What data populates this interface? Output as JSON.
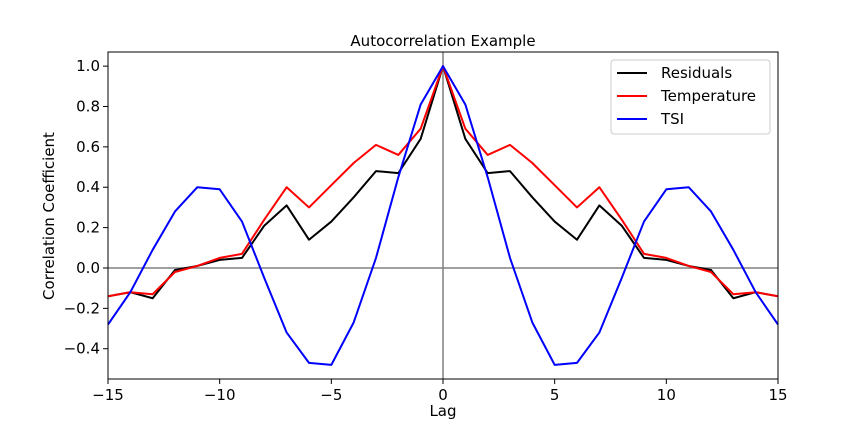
{
  "chart_data": {
    "type": "line",
    "title": "Autocorrelation Example",
    "xlabel": "Lag",
    "ylabel": "Correlation Coefficient",
    "xlim": [
      -15,
      15
    ],
    "ylim": [
      -0.55,
      1.07
    ],
    "xticks": [
      -15,
      -10,
      -5,
      0,
      5,
      10,
      15
    ],
    "xtick_labels": [
      "−15",
      "−10",
      "−5",
      "0",
      "5",
      "10",
      "15"
    ],
    "yticks": [
      -0.4,
      -0.2,
      0.0,
      0.2,
      0.4,
      0.6,
      0.8,
      1.0
    ],
    "ytick_labels": [
      "−0.4",
      "−0.2",
      "0.0",
      "0.2",
      "0.4",
      "0.6",
      "0.8",
      "1.0"
    ],
    "x": [
      -15,
      -14,
      -13,
      -12,
      -11,
      -10,
      -9,
      -8,
      -7,
      -6,
      -5,
      -4,
      -3,
      -2,
      -1,
      0,
      1,
      2,
      3,
      4,
      5,
      6,
      7,
      8,
      9,
      10,
      11,
      12,
      13,
      14,
      15
    ],
    "reference_lines": {
      "x": 0,
      "y": 0,
      "color": "#808080"
    },
    "legend_position": "top-right",
    "grid": false,
    "series": [
      {
        "name": "Residuals",
        "color": "#000000",
        "values": [
          -0.14,
          -0.12,
          -0.15,
          -0.01,
          0.01,
          0.04,
          0.05,
          0.21,
          0.31,
          0.14,
          0.23,
          0.35,
          0.48,
          0.47,
          0.64,
          1.0,
          0.64,
          0.47,
          0.48,
          0.35,
          0.23,
          0.14,
          0.31,
          0.21,
          0.05,
          0.04,
          0.01,
          -0.01,
          -0.15,
          -0.12,
          -0.14
        ]
      },
      {
        "name": "Temperature",
        "color": "#ff0000",
        "values": [
          -0.14,
          -0.12,
          -0.13,
          -0.02,
          0.01,
          0.05,
          0.07,
          0.24,
          0.4,
          0.3,
          0.41,
          0.52,
          0.61,
          0.56,
          0.69,
          1.0,
          0.69,
          0.56,
          0.61,
          0.52,
          0.41,
          0.3,
          0.4,
          0.24,
          0.07,
          0.05,
          0.01,
          -0.02,
          -0.13,
          -0.12,
          -0.14
        ]
      },
      {
        "name": "TSI",
        "color": "#0000ff",
        "values": [
          -0.28,
          -0.12,
          0.09,
          0.28,
          0.4,
          0.39,
          0.23,
          -0.05,
          -0.32,
          -0.47,
          -0.48,
          -0.27,
          0.05,
          0.45,
          0.81,
          1.0,
          0.81,
          0.45,
          0.05,
          -0.27,
          -0.48,
          -0.47,
          -0.32,
          -0.05,
          0.23,
          0.39,
          0.4,
          0.28,
          0.09,
          -0.12,
          -0.28
        ]
      }
    ]
  }
}
